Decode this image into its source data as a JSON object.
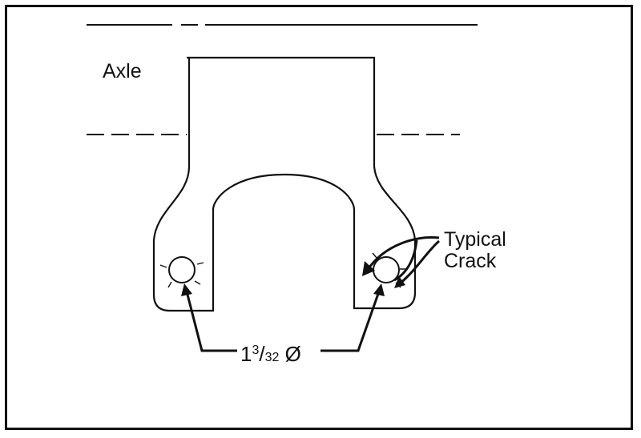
{
  "labels": {
    "axle": "Axle",
    "crack_line1": "Typical",
    "crack_line2": "Crack",
    "dim_whole": "1",
    "dim_num": "3",
    "dim_den": "32",
    "dim_symbol": "Ø"
  },
  "colors": {
    "ink": "#111111",
    "background": "#ffffff"
  }
}
